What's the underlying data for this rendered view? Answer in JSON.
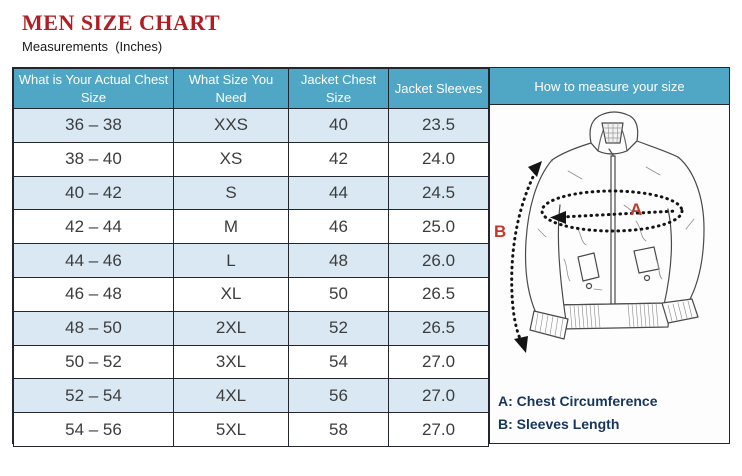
{
  "header": {
    "title": "MEN SIZE CHART",
    "subtitle": "Measurements  (Inches)"
  },
  "table": {
    "columns": [
      "What is Your Actual Chest Size",
      "What Size You Need",
      "Jacket Chest Size",
      "Jacket Sleeves"
    ],
    "rows": [
      [
        "36 – 38",
        "XXS",
        "40",
        "23.5"
      ],
      [
        "38 – 40",
        "XS",
        "42",
        "24.0"
      ],
      [
        "40 – 42",
        "S",
        "44",
        "24.5"
      ],
      [
        "42 – 44",
        "M",
        "46",
        "25.0"
      ],
      [
        "44 – 46",
        "L",
        "48",
        "26.0"
      ],
      [
        "46 – 48",
        "XL",
        "50",
        "26.5"
      ],
      [
        "48 – 50",
        "2XL",
        "52",
        "26.5"
      ],
      [
        "50 – 52",
        "3XL",
        "54",
        "27.0"
      ],
      [
        "52 – 54",
        "4XL",
        "56",
        "27.0"
      ],
      [
        "54 – 56",
        "5XL",
        "58",
        "27.0"
      ]
    ]
  },
  "panel": {
    "title": "How to measure your size",
    "marker_a": "A",
    "marker_b": "B",
    "legend_a": "A: Chest Circumference",
    "legend_b": "B: Sleeves Length"
  },
  "colors": {
    "header_teal": "#4FA7C5",
    "row_light_blue": "#D9E8F2",
    "row_white": "#FFFFFF",
    "border_dark": "#23262E",
    "title_red": "#B01E24",
    "marker_red": "#C0392B",
    "legend_navy": "#17365D"
  },
  "chart_data": {
    "type": "table",
    "title": "MEN SIZE CHART",
    "subtitle": "Measurements (Inches)",
    "columns": [
      "What is Your Actual Chest Size",
      "What Size You Need",
      "Jacket Chest Size",
      "Jacket Sleeves"
    ],
    "rows": [
      [
        "36 – 38",
        "XXS",
        40,
        23.5
      ],
      [
        "38 – 40",
        "XS",
        42,
        24.0
      ],
      [
        "40 – 42",
        "S",
        44,
        24.5
      ],
      [
        "42 – 44",
        "M",
        46,
        25.0
      ],
      [
        "44 – 46",
        "L",
        48,
        26.0
      ],
      [
        "46 – 48",
        "XL",
        50,
        26.5
      ],
      [
        "48 – 50",
        "2XL",
        52,
        26.5
      ],
      [
        "50 – 52",
        "3XL",
        54,
        27.0
      ],
      [
        "52 – 54",
        "4XL",
        56,
        27.0
      ],
      [
        "54 – 56",
        "5XL",
        58,
        27.0
      ]
    ],
    "units": "inches",
    "annotations": [
      "A: Chest Circumference",
      "B: Sleeves Length"
    ]
  }
}
